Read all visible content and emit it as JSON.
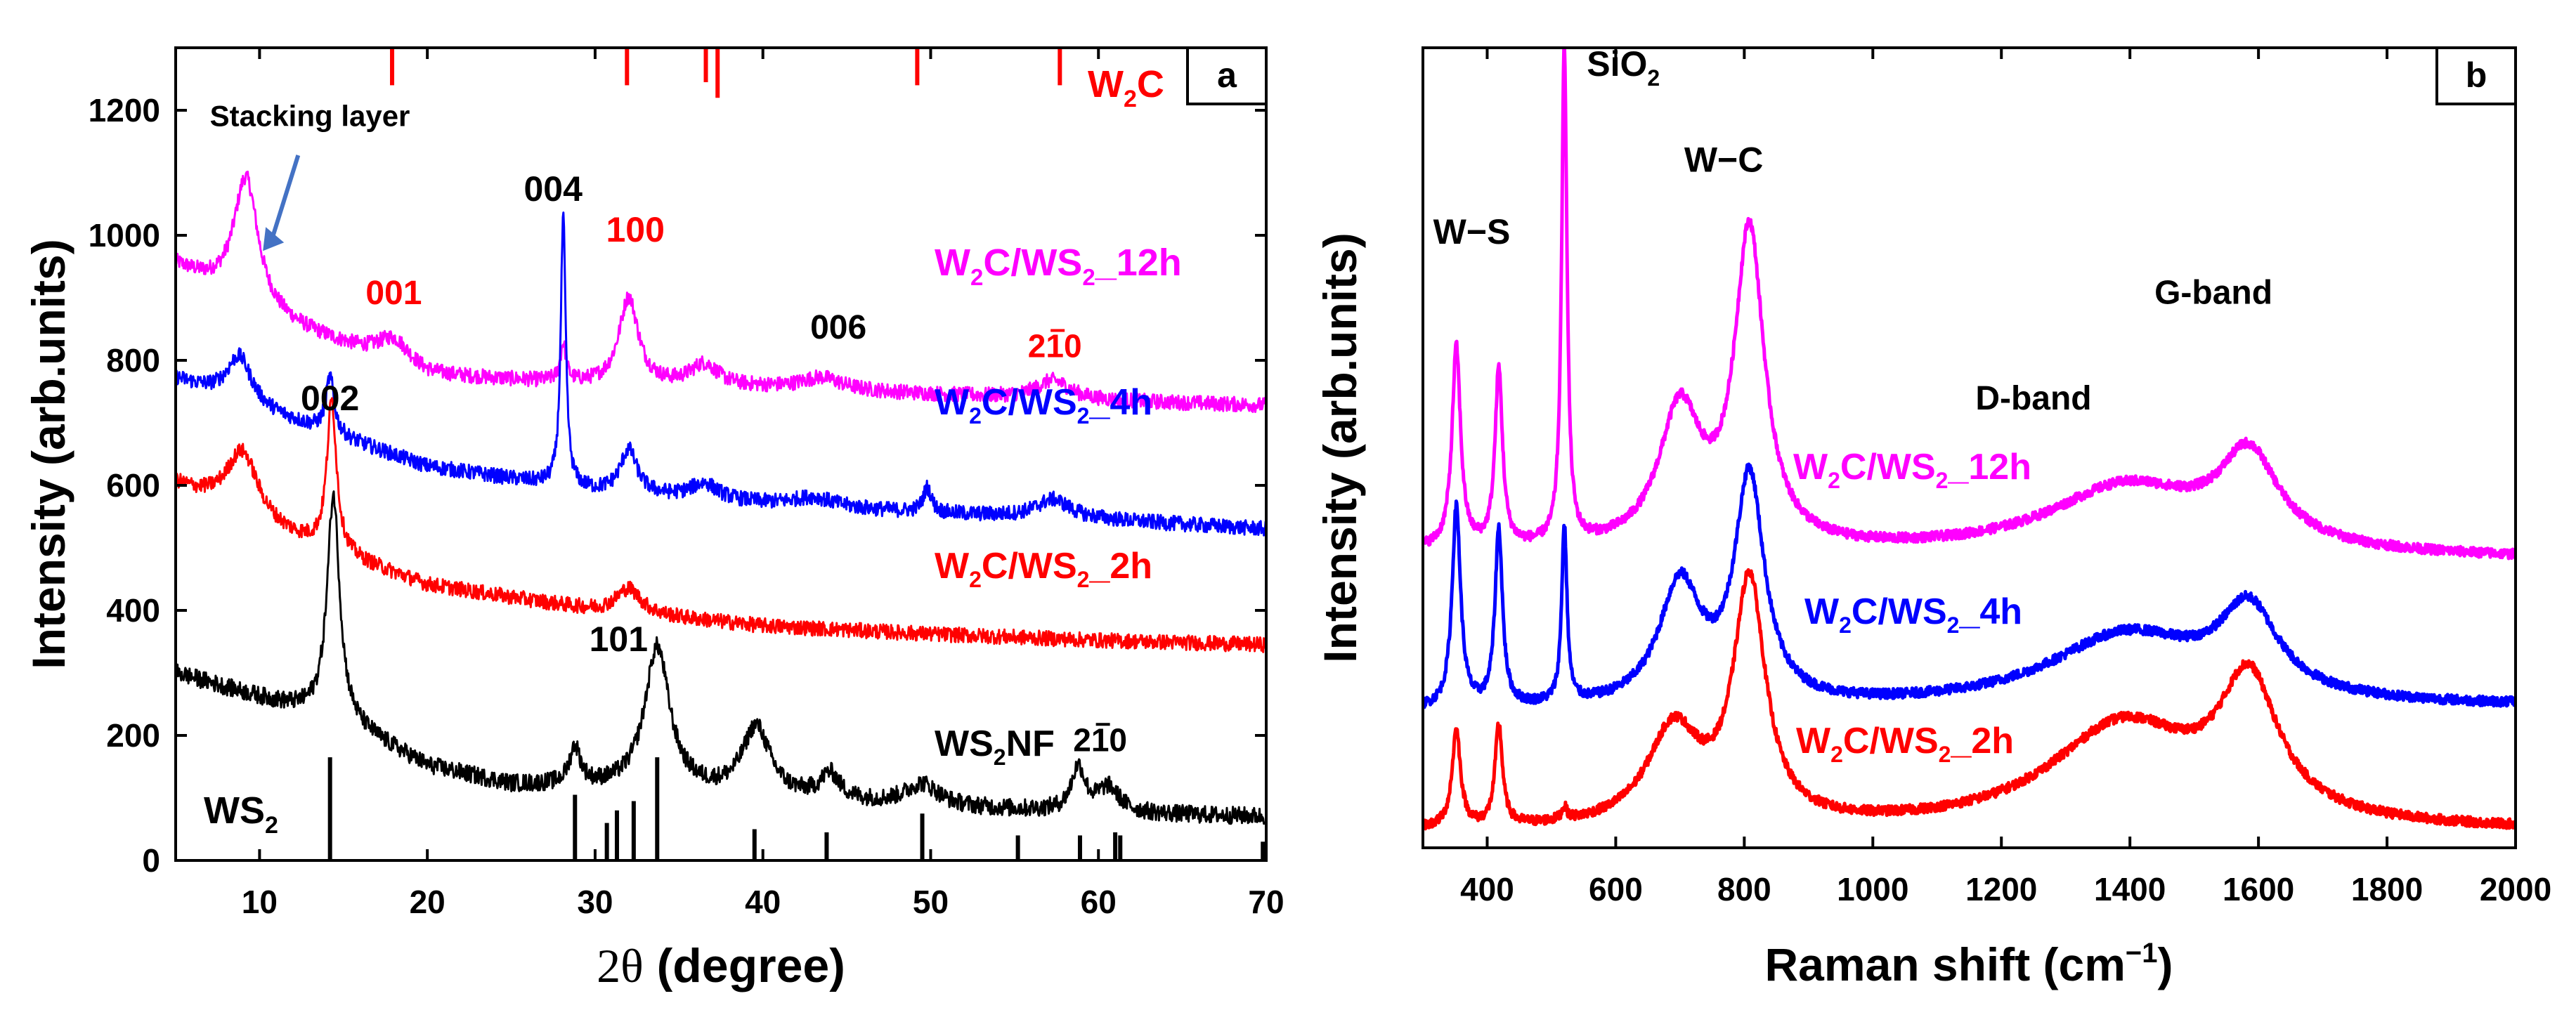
{
  "colors": {
    "magenta": "#ff00ff",
    "blue": "#0000ff",
    "red": "#ff0000",
    "black": "#000000"
  },
  "chart_data": [
    {
      "id": "a",
      "type": "line",
      "panel_label": "a",
      "xlabel_symbol": "2θ",
      "xlabel_unit": "(degree)",
      "ylabel": "Intensity (arb.units)",
      "xlim": [
        5,
        70
      ],
      "ylim": [
        0,
        1300
      ],
      "xticks": [
        10,
        20,
        30,
        40,
        50,
        60,
        70
      ],
      "yticks": [
        0,
        200,
        400,
        600,
        800,
        1000,
        1200
      ],
      "series": [
        {
          "name": "W2C/WS2_12h",
          "label_main": "W",
          "label_sub1": "2",
          "label_mid": "C/WS",
          "label_sub2": "2",
          "label_tail": "_12h",
          "color": "#ff00ff",
          "baseline": [
            [
              5,
              950
            ],
            [
              10,
              870
            ],
            [
              20,
              775
            ],
            [
              30,
              760
            ],
            [
              40,
              755
            ],
            [
              50,
              745
            ],
            [
              60,
              735
            ],
            [
              70,
              728
            ]
          ],
          "peaks": [
            [
              9.2,
              210,
              0.9
            ],
            [
              18,
              40,
              1.2
            ],
            [
              28.1,
              60,
              0.2
            ],
            [
              32,
              140,
              0.7
            ],
            [
              36.5,
              35,
              1.0
            ],
            [
              43.5,
              20,
              1.5
            ],
            [
              57.3,
              30,
              1.2
            ]
          ],
          "noise": 12
        },
        {
          "name": "W2C/WS2_4h",
          "label_main": "W",
          "label_sub1": "2",
          "label_mid": "C/WS",
          "label_sub2": "2",
          "label_tail": "_4h",
          "color": "#0000ff",
          "baseline": [
            [
              5,
              770
            ],
            [
              10,
              720
            ],
            [
              20,
              630
            ],
            [
              30,
              590
            ],
            [
              40,
              570
            ],
            [
              50,
              555
            ],
            [
              60,
              545
            ],
            [
              70,
              530
            ]
          ],
          "peaks": [
            [
              8.8,
              75,
              0.9
            ],
            [
              14.2,
              90,
              0.3
            ],
            [
              28.1,
              430,
              0.18
            ],
            [
              32,
              70,
              0.6
            ],
            [
              36.5,
              25,
              1.0
            ],
            [
              43,
              15,
              1.5
            ],
            [
              49.8,
              40,
              0.3
            ],
            [
              57.3,
              30,
              1.2
            ]
          ],
          "noise": 12
        },
        {
          "name": "W2C/WS2_2h",
          "label_main": "W",
          "label_sub1": "2",
          "label_mid": "C/WS",
          "label_sub2": "2",
          "label_tail": "_2h",
          "color": "#ff0000",
          "baseline": [
            [
              5,
              600
            ],
            [
              10,
              530
            ],
            [
              20,
              440
            ],
            [
              30,
              400
            ],
            [
              40,
              375
            ],
            [
              50,
              362
            ],
            [
              60,
              352
            ],
            [
              70,
              345
            ]
          ],
          "peaks": [
            [
              9,
              110,
              1.2
            ],
            [
              14.3,
              240,
              0.35
            ],
            [
              32,
              40,
              0.9
            ]
          ],
          "noise": 12
        },
        {
          "name": "WS2NF",
          "label_main": "WS",
          "label_sub1": "2",
          "label_mid": "NF",
          "label_sub2": "",
          "label_tail": "",
          "color": "#000000",
          "baseline": [
            [
              5,
              300
            ],
            [
              10,
              260
            ],
            [
              15,
              220
            ],
            [
              20,
              150
            ],
            [
              25,
              120
            ],
            [
              30,
              115
            ],
            [
              40,
              100
            ],
            [
              50,
              85
            ],
            [
              60,
              75
            ],
            [
              70,
              70
            ]
          ],
          "peaks": [
            [
              14.4,
              360,
              0.45
            ],
            [
              28.8,
              60,
              0.4
            ],
            [
              33.7,
              230,
              0.9
            ],
            [
              39.6,
              110,
              1.0
            ],
            [
              44,
              40,
              0.7
            ],
            [
              49.5,
              35,
              1.2
            ],
            [
              58.8,
              70,
              0.5
            ],
            [
              60.6,
              40,
              0.8
            ]
          ],
          "noise": 14
        }
      ],
      "peak_markers_top": {
        "label_main": "W",
        "label_sub": "2",
        "label_tail": "C",
        "color": "#ff0000",
        "items": [
          [
            17.9,
            60
          ],
          [
            31.9,
            60
          ],
          [
            36.6,
            55
          ],
          [
            37.3,
            80
          ],
          [
            49.2,
            60
          ],
          [
            57.7,
            60
          ]
        ]
      },
      "peak_markers_bottom": {
        "label_main": "WS",
        "label_sub": "2",
        "color": "#000000",
        "items": [
          [
            14.2,
            165
          ],
          [
            28.8,
            105
          ],
          [
            30.7,
            60
          ],
          [
            31.3,
            80
          ],
          [
            32.3,
            95
          ],
          [
            33.7,
            165
          ],
          [
            39.5,
            50
          ],
          [
            43.8,
            45
          ],
          [
            49.5,
            75
          ],
          [
            55.2,
            40
          ],
          [
            58.9,
            40
          ],
          [
            61,
            45
          ],
          [
            61.3,
            40
          ],
          [
            69.8,
            30
          ]
        ]
      },
      "annotations": [
        {
          "text": "Stacking layer",
          "x": 13,
          "y": 1175,
          "color": "#000000",
          "size": 42,
          "bold": true
        },
        {
          "text": "004",
          "x": 27.5,
          "y": 1055,
          "color": "#000000",
          "size": 50,
          "bold": true
        },
        {
          "text": "100",
          "x": 32.4,
          "y": 990,
          "color": "#ff0000",
          "size": 50,
          "bold": true
        },
        {
          "text": "001",
          "x": 18,
          "y": 890,
          "color": "#ff0000",
          "size": 48,
          "bold": true
        },
        {
          "text": "006",
          "x": 44.5,
          "y": 835,
          "color": "#000000",
          "size": 48,
          "bold": true
        },
        {
          "text": "002",
          "x": 14.2,
          "y": 720,
          "color": "#000000",
          "size": 50,
          "bold": true
        },
        {
          "text": "101",
          "x": 31.4,
          "y": 335,
          "color": "#000000",
          "size": 50,
          "bold": true
        }
      ],
      "miller_annotations": [
        {
          "a": "2",
          "b": "1",
          "c": "0",
          "x": 57.4,
          "y": 805,
          "color": "#ff0000"
        },
        {
          "a": "2",
          "b": "1",
          "c": "0",
          "x": 60.1,
          "y": 175,
          "color": "#000000"
        }
      ]
    },
    {
      "id": "b",
      "type": "line",
      "panel_label": "b",
      "xlabel_main": "Raman shift (cm",
      "xlabel_sup": "−1",
      "xlabel_tail": ")",
      "ylabel": "Intensity (arb.units)",
      "xlim": [
        300,
        2000
      ],
      "ylim": [
        0,
        1000
      ],
      "xticks": [
        400,
        600,
        800,
        1000,
        1200,
        1400,
        1600,
        1800,
        2000
      ],
      "series": [
        {
          "name": "W2C/WS2_12h",
          "label_main": "W",
          "label_sub1": "2",
          "label_mid": "C/WS",
          "label_sub2": "2",
          "label_tail": "_12h",
          "color": "#ff00ff",
          "baseline": [
            [
              300,
              370
            ],
            [
              2000,
              360
            ]
          ],
          "peaks": [
            [
              352,
              250,
              8
            ],
            [
              418,
              220,
              7
            ],
            [
              520,
              620,
              5
            ],
            [
              700,
              170,
              40
            ],
            [
              808,
              390,
              28
            ],
            [
              1395,
              85,
              150
            ],
            [
              1585,
              110,
              55
            ]
          ],
          "noise": 6
        },
        {
          "name": "W2C/WS2_4h",
          "label_main": "W",
          "label_sub1": "2",
          "label_mid": "C/WS",
          "label_sub2": "2",
          "label_tail": "_4h",
          "color": "#0000ff",
          "baseline": [
            [
              300,
              170
            ],
            [
              2000,
              175
            ]
          ],
          "peaks": [
            [
              352,
              250,
              8
            ],
            [
              418,
              220,
              7
            ],
            [
              520,
              220,
              5
            ],
            [
              700,
              150,
              40
            ],
            [
              808,
              280,
              28
            ],
            [
              1395,
              90,
              150
            ],
            [
              1585,
              105,
              55
            ]
          ],
          "noise": 6
        },
        {
          "name": "W2C/WS2_2h",
          "label_main": "W",
          "label_sub1": "2",
          "label_mid": "C/WS",
          "label_sub2": "2",
          "label_tail": "_2h",
          "color": "#ff0000",
          "baseline": [
            [
              300,
              20
            ],
            [
              2000,
              20
            ]
          ],
          "peaks": [
            [
              352,
              120,
              8
            ],
            [
              418,
              125,
              7
            ],
            [
              520,
              15,
              5
            ],
            [
              690,
              120,
              50
            ],
            [
              808,
              300,
              30
            ],
            [
              1390,
              130,
              140
            ],
            [
              1585,
              165,
              55
            ]
          ],
          "noise": 6
        }
      ],
      "annotations": [
        {
          "text": "W−S",
          "x": 376,
          "y": 755,
          "color": "#000000",
          "size": 50,
          "bold": true
        },
        {
          "text": "W−C",
          "x": 768,
          "y": 845,
          "color": "#000000",
          "size": 50,
          "bold": true
        },
        {
          "text": "G-band",
          "x": 1530,
          "y": 680,
          "color": "#000000",
          "size": 48,
          "bold": true
        },
        {
          "text": "D-band",
          "x": 1250,
          "y": 548,
          "color": "#000000",
          "size": 48,
          "bold": true
        }
      ],
      "sio2": {
        "main": "SiO",
        "sub": "2",
        "x": 555,
        "y": 965
      }
    }
  ]
}
